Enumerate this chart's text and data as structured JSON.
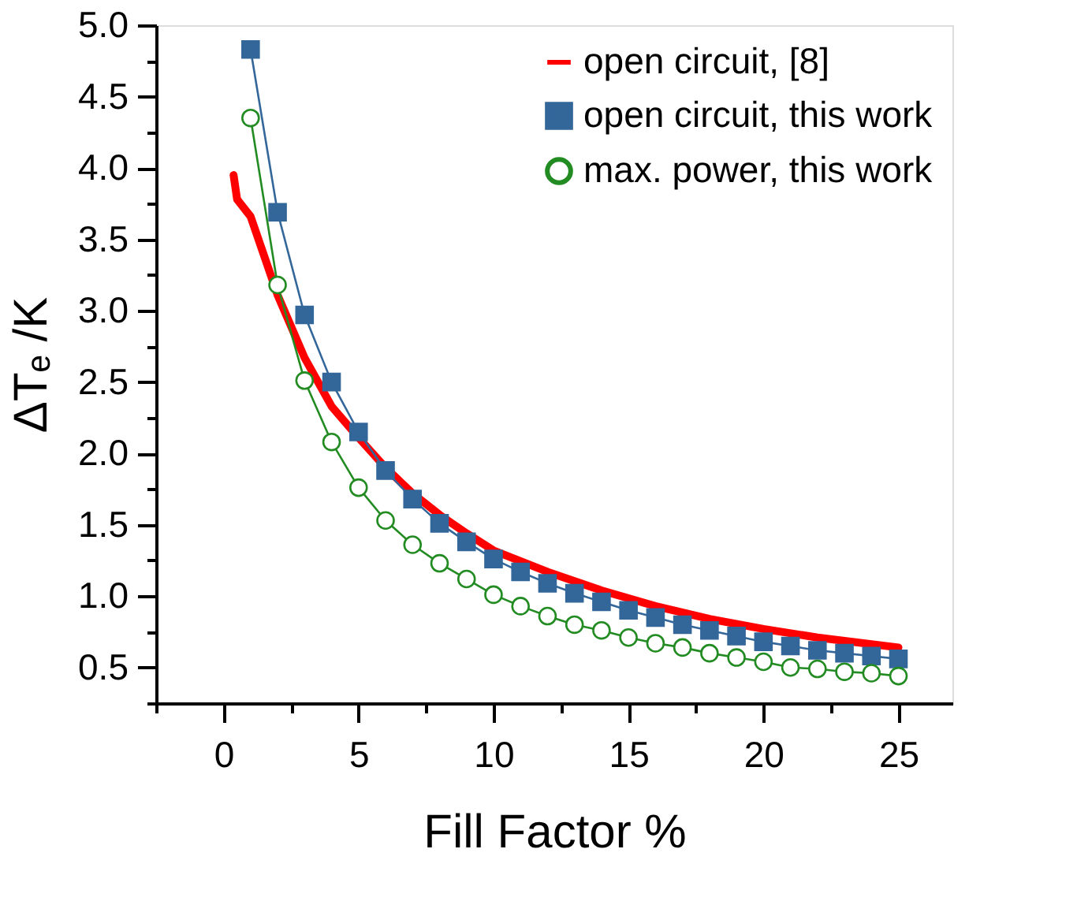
{
  "chart_data": {
    "type": "line",
    "xlabel": "Fill Factor %",
    "ylabel": "ΔTₑ /K",
    "xlim": [
      -2.5,
      27
    ],
    "ylim": [
      0.25,
      5.0
    ],
    "xticks": [
      {
        "value": -2.5,
        "label": null
      },
      0,
      {
        "value": 2.5,
        "label": null
      },
      5,
      {
        "value": 7.5,
        "label": null
      },
      10,
      {
        "value": 12.5,
        "label": null
      },
      15,
      {
        "value": 17.5,
        "label": null
      },
      20,
      {
        "value": 22.5,
        "label": null
      },
      25
    ],
    "yticks": [
      {
        "value": 0.25,
        "label": null
      },
      {
        "value": 0.5,
        "label": "0.5"
      },
      {
        "value": 0.75,
        "label": null
      },
      {
        "value": 1.0,
        "label": "1.0"
      },
      {
        "value": 1.25,
        "label": null
      },
      {
        "value": 1.5,
        "label": "1.5"
      },
      {
        "value": 1.75,
        "label": null
      },
      {
        "value": 2.0,
        "label": "2.0"
      },
      {
        "value": 2.25,
        "label": null
      },
      {
        "value": 2.5,
        "label": "2.5"
      },
      {
        "value": 2.75,
        "label": null
      },
      {
        "value": 3.0,
        "label": "3.0"
      },
      {
        "value": 3.25,
        "label": null
      },
      {
        "value": 3.5,
        "label": "3.5"
      },
      {
        "value": 3.75,
        "label": null
      },
      {
        "value": 4.0,
        "label": "4.0"
      },
      {
        "value": 4.25,
        "label": null
      },
      {
        "value": 4.5,
        "label": "4.5"
      },
      {
        "value": 4.75,
        "label": null
      },
      {
        "value": 5.0,
        "label": "5.0"
      }
    ],
    "grid": false,
    "legend": "top right",
    "series": [
      {
        "name": "open circuit, [8]",
        "color": "#ff0000",
        "marker": "none",
        "x": [
          0.37,
          0.5,
          1,
          2,
          3,
          4,
          5,
          6,
          7,
          8,
          9,
          10,
          12,
          14,
          16,
          18,
          20,
          22,
          25
        ],
        "values": [
          3.95,
          3.78,
          3.66,
          3.11,
          2.67,
          2.33,
          2.11,
          1.9,
          1.72,
          1.57,
          1.44,
          1.32,
          1.17,
          1.04,
          0.93,
          0.84,
          0.77,
          0.71,
          0.64
        ]
      },
      {
        "name": "open circuit, this work",
        "color": "#336699",
        "marker": "square",
        "x": [
          1,
          2,
          3,
          4,
          5,
          6,
          7,
          8,
          9,
          10,
          11,
          12,
          13,
          14,
          15,
          16,
          17,
          18,
          19,
          20,
          21,
          22,
          23,
          24,
          25
        ],
        "values": [
          4.83,
          3.69,
          2.97,
          2.5,
          2.15,
          1.88,
          1.68,
          1.51,
          1.38,
          1.26,
          1.17,
          1.09,
          1.02,
          0.96,
          0.9,
          0.85,
          0.8,
          0.76,
          0.72,
          0.68,
          0.65,
          0.62,
          0.6,
          0.58,
          0.56
        ]
      },
      {
        "name": "max. power, this work",
        "color": "#228b22",
        "marker": "circle",
        "x": [
          1,
          2,
          3,
          4,
          5,
          6,
          7,
          8,
          9,
          10,
          11,
          12,
          13,
          14,
          15,
          16,
          17,
          18,
          19,
          20,
          21,
          22,
          23,
          24,
          25
        ],
        "values": [
          4.35,
          3.18,
          2.51,
          2.08,
          1.76,
          1.53,
          1.36,
          1.23,
          1.12,
          1.01,
          0.93,
          0.86,
          0.8,
          0.76,
          0.71,
          0.67,
          0.64,
          0.6,
          0.57,
          0.54,
          0.5,
          0.49,
          0.47,
          0.46,
          0.44
        ]
      }
    ]
  }
}
